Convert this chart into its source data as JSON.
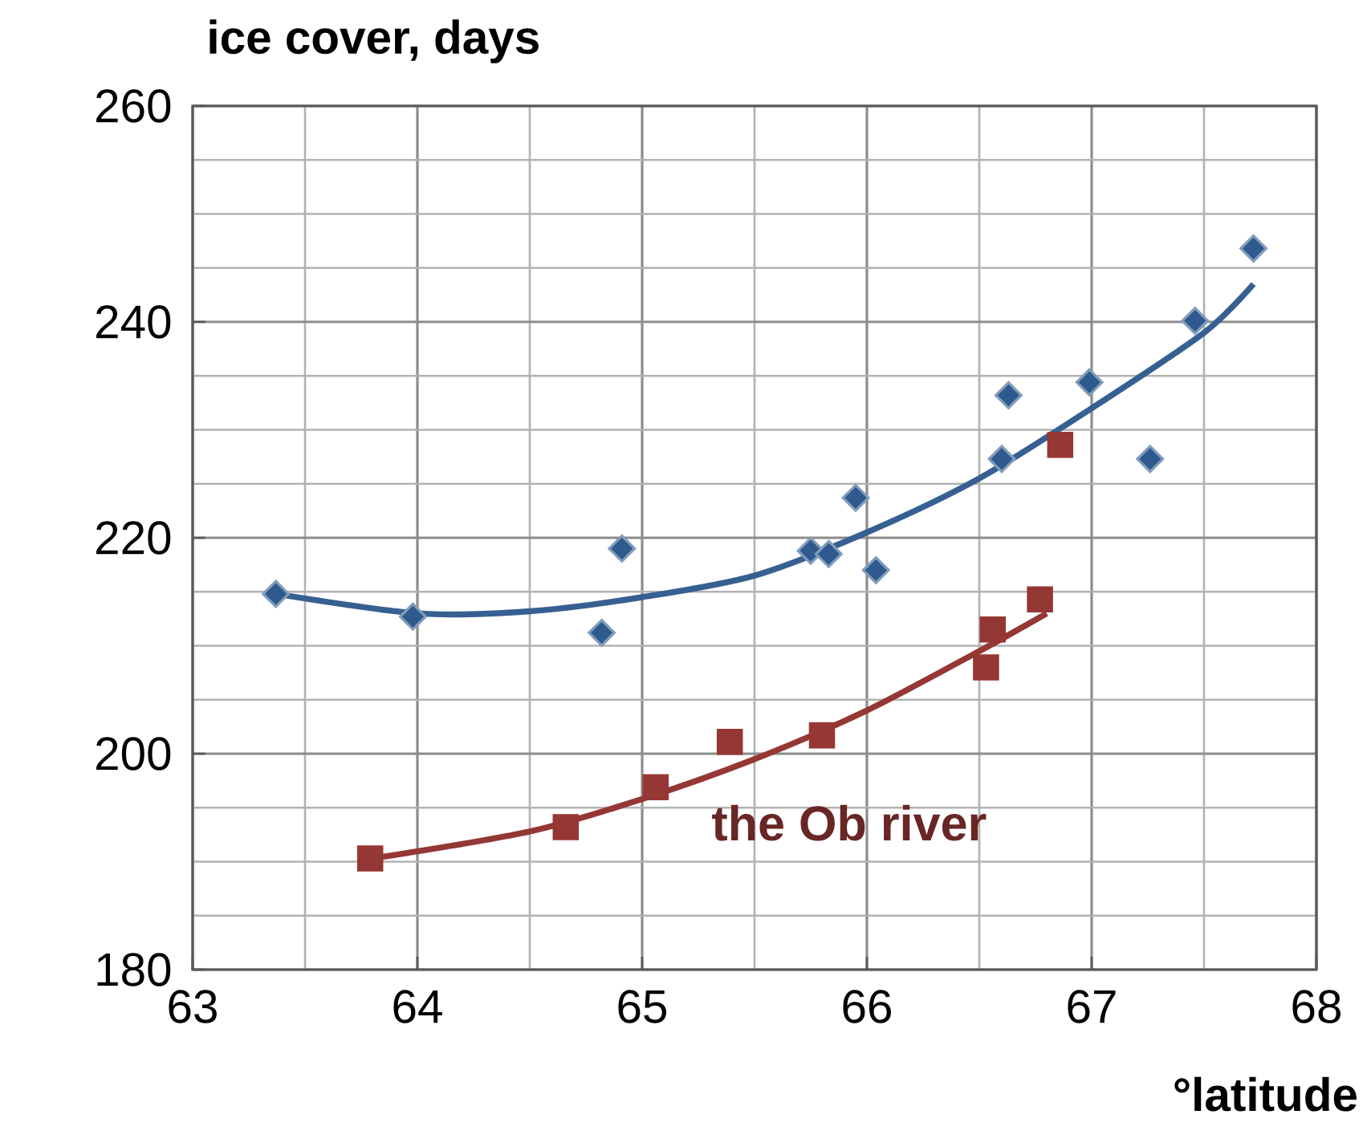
{
  "chart_data": {
    "type": "scatter",
    "xlabel": "°latitude",
    "ylabel": "ice cover, days",
    "xlim": [
      63,
      68
    ],
    "xticks": [
      63,
      64,
      65,
      66,
      67,
      68
    ],
    "ylim": [
      180,
      260
    ],
    "yticks": [
      180,
      200,
      220,
      240,
      260
    ],
    "grid": true,
    "series": [
      {
        "marker": "diamond",
        "color": "#2e5a8e",
        "x": [
          63.37,
          63.98,
          64.82,
          64.91,
          65.75,
          65.83,
          66.04,
          65.95,
          66.6,
          66.63,
          66.99,
          67.26,
          67.46,
          67.72
        ],
        "values": [
          214.8,
          212.7,
          211.2,
          219.0,
          218.8,
          218.5,
          217.0,
          223.7,
          227.3,
          233.2,
          234.4,
          227.3,
          240.1,
          246.8
        ]
      },
      {
        "type": "line",
        "marker": "none",
        "color": "#376092",
        "x": [
          63.37,
          64.0,
          64.5,
          65.0,
          65.5,
          66.0,
          66.5,
          67.0,
          67.5,
          67.72
        ],
        "values": [
          214.8,
          213.0,
          213.2,
          214.5,
          216.5,
          220.5,
          225.5,
          232.0,
          239.0,
          243.5
        ]
      },
      {
        "marker": "square",
        "name": "the Ob river",
        "color": "#953735",
        "x": [
          63.79,
          64.66,
          65.06,
          65.39,
          65.8,
          66.53,
          66.56,
          66.77,
          66.86
        ],
        "values": [
          190.3,
          193.2,
          196.9,
          201.1,
          201.7,
          208.0,
          211.5,
          214.3,
          228.6
        ]
      },
      {
        "type": "line",
        "marker": "none",
        "color": "#953735",
        "x": [
          63.8,
          64.5,
          65.0,
          65.5,
          66.0,
          66.5,
          66.8
        ],
        "values": [
          190.3,
          192.8,
          195.8,
          199.5,
          204.0,
          209.5,
          213.0
        ]
      }
    ]
  }
}
